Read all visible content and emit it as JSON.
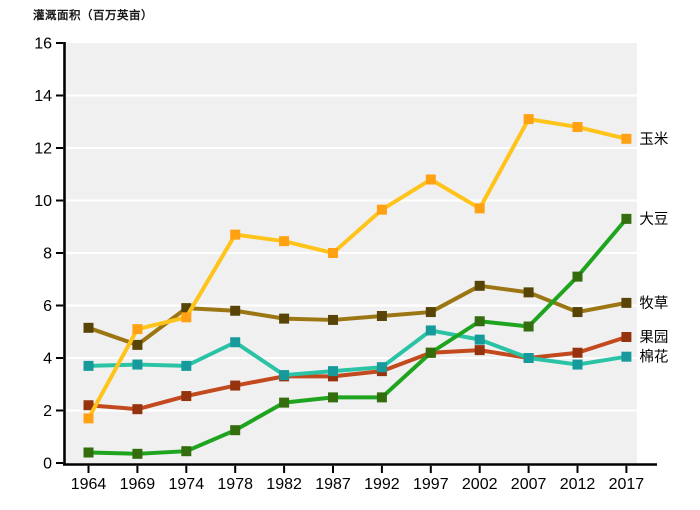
{
  "title": "灌溉面积（百万英亩）",
  "chart_data": {
    "type": "line",
    "title": "灌溉面积（百万英亩）",
    "xlabel": "",
    "ylabel": "灌溉面积（百万英亩）",
    "categories": [
      1964,
      1969,
      1974,
      1978,
      1982,
      1987,
      1992,
      1997,
      2002,
      2007,
      2012,
      2017
    ],
    "x_tick_labels": [
      "1964",
      "1969",
      "1974",
      "1978",
      "1982",
      "1987",
      "1992",
      "1997",
      "2002",
      "2007",
      "2012",
      "2017"
    ],
    "ylim": [
      0,
      16
    ],
    "ytick_step": 2,
    "y_tick_labels": [
      "0",
      "2",
      "4",
      "6",
      "8",
      "10",
      "12",
      "14",
      "16"
    ],
    "grid": "horizontal, white on light-gray plot background",
    "legend_position": "direct labels at right end of each line",
    "plot_bg_color": "#f0f0f0",
    "grid_color": "#ffffff",
    "axis_color": "#000000",
    "series": [
      {
        "id": "corn",
        "name": "玉米",
        "line_color": "#ffc41c",
        "marker_color": "#ffa113",
        "marker": "square",
        "values": [
          1.7,
          5.1,
          5.55,
          8.7,
          8.45,
          8.0,
          9.65,
          10.8,
          9.7,
          13.1,
          12.8,
          12.35
        ]
      },
      {
        "id": "soybean",
        "name": "大豆",
        "line_color": "#1ea41e",
        "marker_color": "#336d0e",
        "marker": "square",
        "values": [
          0.4,
          0.35,
          0.45,
          1.25,
          2.3,
          2.5,
          2.5,
          4.2,
          5.4,
          5.2,
          7.1,
          9.3
        ]
      },
      {
        "id": "hay",
        "name": "牧草",
        "line_color": "#9c7613",
        "marker_color": "#584407",
        "marker": "square",
        "values": [
          5.15,
          4.5,
          5.9,
          5.8,
          5.5,
          5.45,
          5.6,
          5.75,
          6.75,
          6.5,
          5.75,
          6.1
        ]
      },
      {
        "id": "orchard",
        "name": "果园",
        "line_color": "#c24a1e",
        "marker_color": "#96330f",
        "marker": "square",
        "values": [
          2.2,
          2.05,
          2.55,
          2.95,
          3.3,
          3.3,
          3.5,
          4.2,
          4.3,
          4.0,
          4.2,
          4.8
        ]
      },
      {
        "id": "cotton",
        "name": "棉花",
        "line_color": "#2bc3a5",
        "marker_color": "#169a9b",
        "marker": "square",
        "values": [
          3.7,
          3.75,
          3.7,
          4.6,
          3.35,
          3.5,
          3.65,
          5.05,
          4.7,
          4.0,
          3.75,
          4.05
        ]
      }
    ]
  }
}
